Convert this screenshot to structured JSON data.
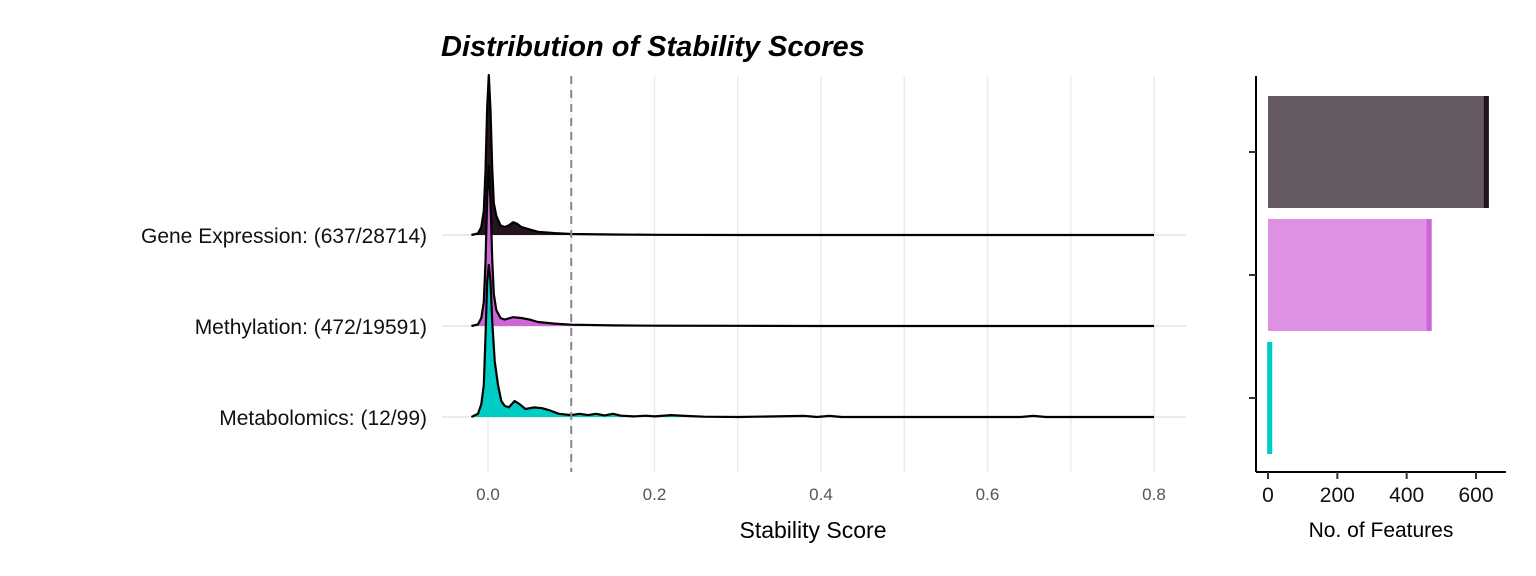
{
  "chart_data": [
    {
      "type": "area",
      "subtype": "ridgeline-density",
      "title": "Distribution of Stability Scores",
      "xlabel": "Stability Score",
      "ylabel": "",
      "xlim": [
        -0.02,
        0.84
      ],
      "x_ticks": [
        "0.0",
        "0.2",
        "0.4",
        "0.6",
        "0.8"
      ],
      "x_tick_values": [
        0.0,
        0.2,
        0.4,
        0.6,
        0.8
      ],
      "threshold_line": 0.1,
      "grid": true,
      "series": [
        {
          "name": "Gene Expression: (637/28714)",
          "color": "#241320",
          "density": [
            [
              -0.02,
              0.0
            ],
            [
              -0.012,
              0.01
            ],
            [
              -0.008,
              0.05
            ],
            [
              -0.005,
              0.15
            ],
            [
              -0.003,
              0.4
            ],
            [
              -0.001,
              0.8
            ],
            [
              0.001,
              1.0
            ],
            [
              0.003,
              0.78
            ],
            [
              0.005,
              0.42
            ],
            [
              0.007,
              0.2
            ],
            [
              0.01,
              0.12
            ],
            [
              0.015,
              0.06
            ],
            [
              0.02,
              0.05
            ],
            [
              0.025,
              0.06
            ],
            [
              0.03,
              0.08
            ],
            [
              0.035,
              0.07
            ],
            [
              0.04,
              0.05
            ],
            [
              0.05,
              0.035
            ],
            [
              0.06,
              0.02
            ],
            [
              0.08,
              0.012
            ],
            [
              0.1,
              0.006
            ],
            [
              0.15,
              0.003
            ],
            [
              0.2,
              0.001
            ],
            [
              0.3,
              0.0
            ],
            [
              0.8,
              0.0
            ]
          ]
        },
        {
          "name": "Methylation: (472/19591)",
          "color": "#d063d6",
          "density": [
            [
              -0.02,
              0.0
            ],
            [
              -0.012,
              0.01
            ],
            [
              -0.008,
              0.05
            ],
            [
              -0.005,
              0.15
            ],
            [
              -0.003,
              0.4
            ],
            [
              -0.001,
              0.8
            ],
            [
              0.001,
              1.0
            ],
            [
              0.003,
              0.78
            ],
            [
              0.005,
              0.42
            ],
            [
              0.007,
              0.2
            ],
            [
              0.01,
              0.1
            ],
            [
              0.015,
              0.05
            ],
            [
              0.02,
              0.04
            ],
            [
              0.03,
              0.055
            ],
            [
              0.04,
              0.05
            ],
            [
              0.05,
              0.04
            ],
            [
              0.06,
              0.025
            ],
            [
              0.08,
              0.015
            ],
            [
              0.1,
              0.008
            ],
            [
              0.15,
              0.004
            ],
            [
              0.2,
              0.002
            ],
            [
              0.3,
              0.001
            ],
            [
              0.4,
              0.0
            ],
            [
              0.8,
              0.0
            ]
          ]
        },
        {
          "name": "Metabolomics: (12/99)",
          "color": "#00ccc6",
          "density": [
            [
              -0.02,
              0.0
            ],
            [
              -0.012,
              0.02
            ],
            [
              -0.008,
              0.08
            ],
            [
              -0.005,
              0.2
            ],
            [
              -0.003,
              0.5
            ],
            [
              -0.001,
              0.85
            ],
            [
              0.001,
              0.95
            ],
            [
              0.003,
              0.85
            ],
            [
              0.005,
              0.6
            ],
            [
              0.008,
              0.35
            ],
            [
              0.012,
              0.2
            ],
            [
              0.016,
              0.1
            ],
            [
              0.02,
              0.07
            ],
            [
              0.025,
              0.06
            ],
            [
              0.032,
              0.1
            ],
            [
              0.038,
              0.08
            ],
            [
              0.045,
              0.05
            ],
            [
              0.055,
              0.06
            ],
            [
              0.065,
              0.055
            ],
            [
              0.075,
              0.04
            ],
            [
              0.085,
              0.02
            ],
            [
              0.1,
              0.012
            ],
            [
              0.11,
              0.02
            ],
            [
              0.12,
              0.012
            ],
            [
              0.13,
              0.02
            ],
            [
              0.14,
              0.01
            ],
            [
              0.15,
              0.02
            ],
            [
              0.16,
              0.008
            ],
            [
              0.175,
              0.004
            ],
            [
              0.19,
              0.008
            ],
            [
              0.2,
              0.004
            ],
            [
              0.22,
              0.012
            ],
            [
              0.24,
              0.006
            ],
            [
              0.26,
              0.002
            ],
            [
              0.3,
              0.0
            ],
            [
              0.38,
              0.007
            ],
            [
              0.395,
              0.0
            ],
            [
              0.41,
              0.007
            ],
            [
              0.425,
              0.0
            ],
            [
              0.64,
              0.0
            ],
            [
              0.655,
              0.007
            ],
            [
              0.67,
              0.0
            ],
            [
              0.8,
              0.0
            ]
          ]
        }
      ]
    },
    {
      "type": "bar",
      "orientation": "horizontal",
      "xlabel": "No. of Features",
      "ylabel": "",
      "xlim": [
        -12,
        680
      ],
      "x_ticks": [
        "0",
        "200",
        "400",
        "600"
      ],
      "x_tick_values": [
        0,
        200,
        400,
        600
      ],
      "grid": false,
      "categories": [
        "Gene Expression",
        "Methylation",
        "Metabolomics"
      ],
      "values": [
        637,
        472,
        12
      ],
      "colors": [
        "#241320",
        "#d063d6",
        "#00ccc6"
      ]
    }
  ]
}
